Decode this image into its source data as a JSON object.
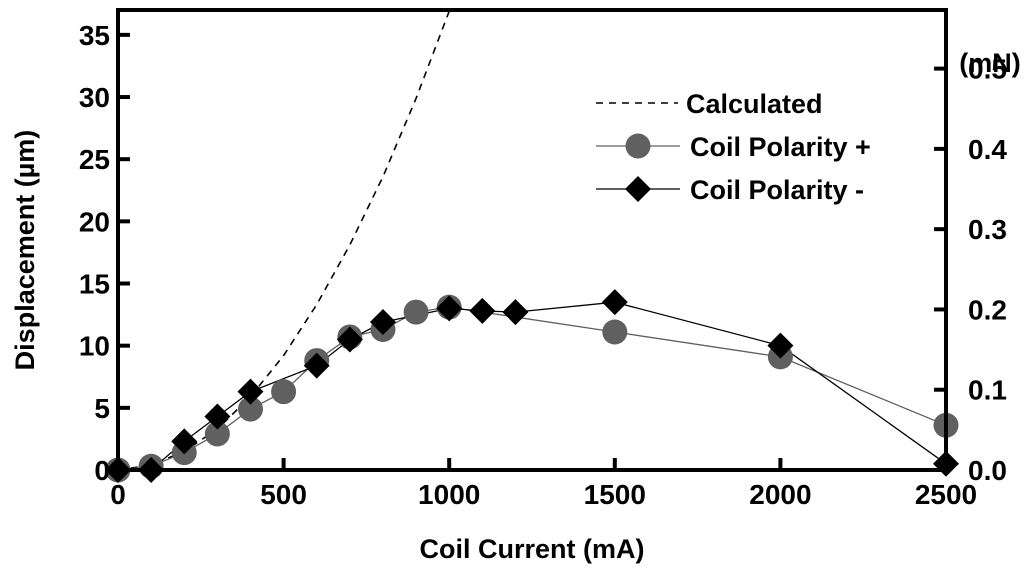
{
  "chart_data": {
    "type": "scatter",
    "xlabel": "Coil Current  (mA)",
    "ylabel": "Displacement  (µm)",
    "y2label": "(mN)",
    "xlim": [
      0,
      2500
    ],
    "ylim": [
      0,
      37
    ],
    "y2lim": [
      0,
      0.573
    ],
    "x_ticks": [
      "0",
      "500",
      "1000",
      "1500",
      "2000",
      "2500"
    ],
    "x_tick_values": [
      0,
      500,
      1000,
      1500,
      2000,
      2500
    ],
    "y_ticks": [
      "0",
      "5",
      "10",
      "15",
      "20",
      "25",
      "30",
      "35"
    ],
    "y_tick_values": [
      0,
      5,
      10,
      15,
      20,
      25,
      30,
      35
    ],
    "y2_ticks": [
      "0.0",
      "0.1",
      "0.2",
      "0.3",
      "0.4",
      "0.5"
    ],
    "y2_tick_values": [
      0.0,
      0.1,
      0.2,
      0.3,
      0.4,
      0.5
    ],
    "grid": false,
    "legend_position": "top-right",
    "series": [
      {
        "name": "Calculated",
        "style": "dashed-line",
        "color": "#000000",
        "x": [
          0,
          100,
          200,
          300,
          400,
          500,
          600,
          700,
          800,
          900,
          1000
        ],
        "y": [
          0,
          0.4,
          1.5,
          3.3,
          5.9,
          9.2,
          13.3,
          18.1,
          23.6,
          29.9,
          36.9
        ]
      },
      {
        "name": "Coil Polarity +",
        "style": "circle-marker-line",
        "color": "#606060",
        "x": [
          0,
          100,
          200,
          300,
          400,
          500,
          600,
          700,
          800,
          900,
          1000,
          1500,
          2000,
          2500
        ],
        "y": [
          0,
          0.3,
          1.4,
          2.9,
          4.9,
          6.3,
          8.8,
          10.7,
          11.3,
          12.7,
          13.1,
          11.1,
          9.1,
          3.6
        ]
      },
      {
        "name": "Coil Polarity -",
        "style": "diamond-marker-line",
        "color": "#000000",
        "x": [
          0,
          100,
          200,
          300,
          400,
          600,
          700,
          800,
          1000,
          1100,
          1200,
          1500,
          2000,
          2500
        ],
        "y": [
          0,
          0,
          2.3,
          4.3,
          6.3,
          8.4,
          10.5,
          11.9,
          13.0,
          12.8,
          12.7,
          13.5,
          10.0,
          0.5
        ]
      }
    ]
  }
}
